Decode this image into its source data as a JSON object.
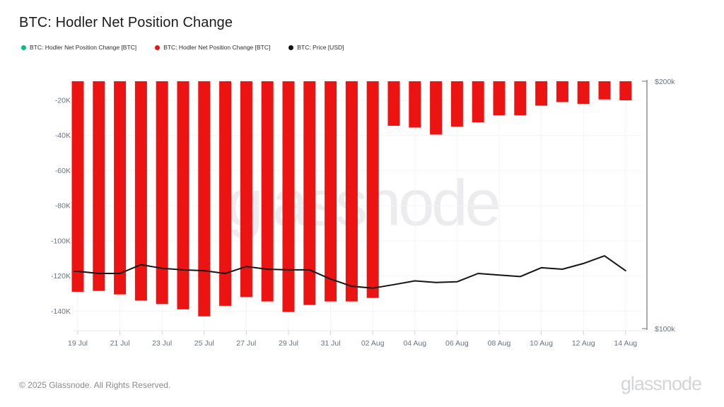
{
  "page": {
    "title": "BTC: Hodler Net Position Change",
    "watermark": "glassnode",
    "footer": {
      "copyright": "© 2025 Glassnode. All Rights Reserved.",
      "brand": "glassnode"
    }
  },
  "legend": {
    "items": [
      {
        "label": "BTC: Hodler Net Position Change [BTC]",
        "color": "#10b981"
      },
      {
        "label": "BTC: Hodler Net Position Change [BTC]",
        "color": "#ec1313"
      },
      {
        "label": "BTC: Price [USD]",
        "color": "#141414"
      }
    ]
  },
  "chart_data": {
    "type": "bar",
    "title": "BTC: Hodler Net Position Change",
    "categories": [
      "19 Jul",
      "20 Jul",
      "21 Jul",
      "22 Jul",
      "23 Jul",
      "24 Jul",
      "25 Jul",
      "26 Jul",
      "27 Jul",
      "28 Jul",
      "29 Jul",
      "30 Jul",
      "31 Jul",
      "01 Aug",
      "02 Aug",
      "03 Aug",
      "04 Aug",
      "05 Aug",
      "06 Aug",
      "07 Aug",
      "08 Aug",
      "09 Aug",
      "10 Aug",
      "11 Aug",
      "12 Aug",
      "13 Aug",
      "14 Aug"
    ],
    "series": [
      {
        "name": "BTC: Hodler Net Position Change [BTC]",
        "type": "bar",
        "axis": "left",
        "unit": "BTC",
        "color": "#ec1313",
        "values": [
          -129000,
          -128500,
          -130500,
          -134000,
          -136000,
          -139000,
          -143000,
          -137000,
          -132000,
          -134500,
          -140500,
          -136500,
          -134500,
          -134500,
          -132500,
          -34500,
          -35500,
          -39500,
          -35000,
          -32500,
          -28500,
          -28500,
          -23000,
          -21000,
          -22000,
          -19500,
          -20000
        ]
      },
      {
        "name": "BTC: Price [USD]",
        "type": "line",
        "axis": "right",
        "unit": "USD",
        "color": "#141414",
        "values": [
          117400,
          116700,
          116700,
          119600,
          118400,
          117900,
          117600,
          116700,
          119000,
          118100,
          117900,
          117900,
          114900,
          112600,
          112000,
          113100,
          114300,
          113800,
          114000,
          116700,
          116200,
          115700,
          118600,
          118100,
          120000,
          122600,
          117600
        ]
      }
    ],
    "x_axis": {
      "tick_labels": [
        "19 Jul",
        "21 Jul",
        "23 Jul",
        "25 Jul",
        "27 Jul",
        "29 Jul",
        "31 Jul",
        "02 Aug",
        "04 Aug",
        "06 Aug",
        "08 Aug",
        "10 Aug",
        "12 Aug",
        "14 Aug"
      ],
      "tick_every": 2
    },
    "y_axis_left": {
      "tick_labels": [
        "-20K",
        "-40K",
        "-60K",
        "-80K",
        "-100K",
        "-120K",
        "-140K"
      ],
      "tick_values": [
        -20000,
        -40000,
        -60000,
        -80000,
        -100000,
        -120000,
        -140000
      ],
      "visible_range": [
        -152000,
        -9000
      ]
    },
    "y_axis_right": {
      "tick_labels": [
        "$200k",
        "$100k"
      ],
      "min": 100000,
      "max": 200000,
      "scale": "log"
    },
    "grid": true,
    "legend_position": "top-left"
  }
}
